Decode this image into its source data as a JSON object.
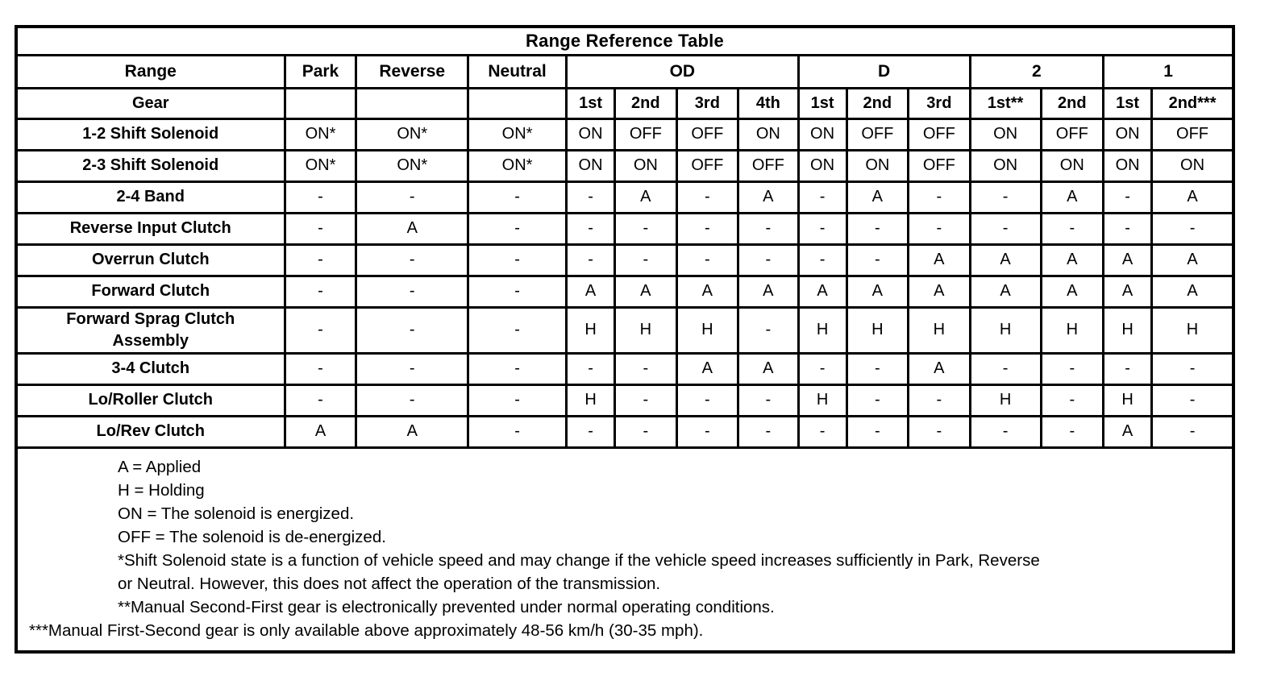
{
  "title": "Range Reference Table",
  "table": {
    "range_header_label": "Range",
    "gear_header_label": "Gear",
    "simple_ranges": [
      "Park",
      "Reverse",
      "Neutral"
    ],
    "gear_groups": [
      {
        "label": "OD",
        "gears": [
          "1st",
          "2nd",
          "3rd",
          "4th"
        ]
      },
      {
        "label": "D",
        "gears": [
          "1st",
          "2nd",
          "3rd"
        ]
      },
      {
        "label": "2",
        "gears": [
          "1st**",
          "2nd"
        ]
      },
      {
        "label": "1",
        "gears": [
          "1st",
          "2nd***"
        ]
      }
    ],
    "rows": [
      {
        "label": "1-2 Shift Solenoid",
        "values": [
          "ON*",
          "ON*",
          "ON*",
          "ON",
          "OFF",
          "OFF",
          "ON",
          "ON",
          "OFF",
          "OFF",
          "ON",
          "OFF",
          "ON",
          "OFF"
        ]
      },
      {
        "label": "2-3 Shift Solenoid",
        "values": [
          "ON*",
          "ON*",
          "ON*",
          "ON",
          "ON",
          "OFF",
          "OFF",
          "ON",
          "ON",
          "OFF",
          "ON",
          "ON",
          "ON",
          "ON"
        ]
      },
      {
        "label": "2-4 Band",
        "values": [
          "-",
          "-",
          "-",
          "-",
          "A",
          "-",
          "A",
          "-",
          "A",
          "-",
          "-",
          "A",
          "-",
          "A"
        ]
      },
      {
        "label": "Reverse Input Clutch",
        "values": [
          "-",
          "A",
          "-",
          "-",
          "-",
          "-",
          "-",
          "-",
          "-",
          "-",
          "-",
          "-",
          "-",
          "-"
        ]
      },
      {
        "label": "Overrun Clutch",
        "values": [
          "-",
          "-",
          "-",
          "-",
          "-",
          "-",
          "-",
          "-",
          "-",
          "A",
          "A",
          "A",
          "A",
          "A"
        ]
      },
      {
        "label": "Forward Clutch",
        "values": [
          "-",
          "-",
          "-",
          "A",
          "A",
          "A",
          "A",
          "A",
          "A",
          "A",
          "A",
          "A",
          "A",
          "A"
        ]
      },
      {
        "label": "Forward Sprag Clutch Assembly",
        "values": [
          "-",
          "-",
          "-",
          "H",
          "H",
          "H",
          "-",
          "H",
          "H",
          "H",
          "H",
          "H",
          "H",
          "H"
        ]
      },
      {
        "label": "3-4 Clutch",
        "values": [
          "-",
          "-",
          "-",
          "-",
          "-",
          "A",
          "A",
          "-",
          "-",
          "A",
          "-",
          "-",
          "-",
          "-"
        ]
      },
      {
        "label": "Lo/Roller Clutch",
        "values": [
          "-",
          "-",
          "-",
          "H",
          "-",
          "-",
          "-",
          "H",
          "-",
          "-",
          "H",
          "-",
          "H",
          "-"
        ]
      },
      {
        "label": "Lo/Rev Clutch",
        "values": [
          "A",
          "A",
          "-",
          "-",
          "-",
          "-",
          "-",
          "-",
          "-",
          "-",
          "-",
          "-",
          "A",
          "-"
        ]
      }
    ]
  },
  "notes": [
    {
      "text": "A = Applied",
      "indent": true
    },
    {
      "text": "H = Holding",
      "indent": true
    },
    {
      "text": "ON = The solenoid is energized.",
      "indent": true
    },
    {
      "text": "OFF = The solenoid is de-energized.",
      "indent": true
    },
    {
      "text": "*Shift Solenoid state is a function of vehicle speed and may change if the vehicle speed increases sufficiently in Park, Reverse",
      "indent": true
    },
    {
      "text": "or Neutral. However, this does not affect the operation of the transmission.",
      "indent": true
    },
    {
      "text": "**Manual Second-First gear is electronically prevented under normal operating conditions.",
      "indent": true
    },
    {
      "text": "***Manual First-Second gear is only available above approximately 48-56 km/h (30-35 mph).",
      "indent": false
    }
  ]
}
